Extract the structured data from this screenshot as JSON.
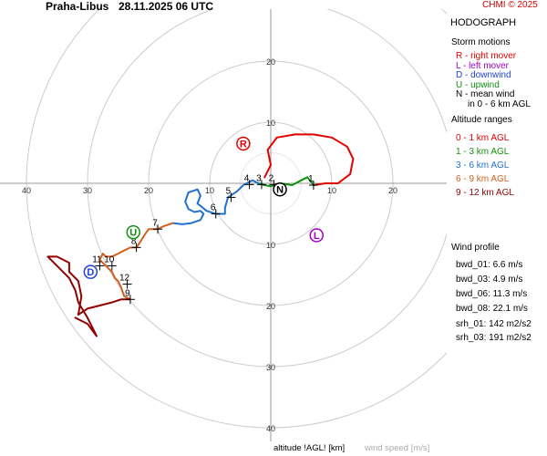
{
  "header": {
    "station": "Praha-Libus",
    "datetime": "28.11.2025 06 UTC",
    "copyright": "CHMI © 2025"
  },
  "footer": {
    "altitude_label": "altitude !AGL! [km]",
    "speed_label": "wind speed [m/s]"
  },
  "legend": {
    "title": "HODOGRAPH",
    "storm_title": "Storm motions",
    "storm_items": [
      {
        "text": "R - right mover",
        "color": "#e00000"
      },
      {
        "text": "L - left mover",
        "color": "#a000c0"
      },
      {
        "text": "D - downwind",
        "color": "#2040e0"
      },
      {
        "text": "U - upwind",
        "color": "#109010"
      },
      {
        "text": "N - mean wind",
        "color": "#000000"
      },
      {
        "text": "in 0 - 6 km AGL",
        "color": "#000000"
      }
    ],
    "alt_title": "Altitude ranges",
    "alt_items": [
      {
        "text": "0 - 1 km AGL",
        "color": "#e00000"
      },
      {
        "text": "1 - 3 km AGL",
        "color": "#109010"
      },
      {
        "text": "3 - 6 km AGL",
        "color": "#2070d0"
      },
      {
        "text": "6 - 9 km AGL",
        "color": "#d06020"
      },
      {
        "text": "9 - 12 km AGL",
        "color": "#900000"
      }
    ],
    "wind_title": "Wind profile",
    "wind_items": [
      "bwd_01: 6.6 m/s",
      "bwd_03: 4.9 m/s",
      "bwd_06: 11.3 m/s",
      "bwd_08: 22.1 m/s"
    ],
    "srh_items": [
      "srh_01: 142 m2/s2",
      "srh_03: 191 m2/s2"
    ]
  },
  "chart_data": {
    "type": "line",
    "title": "HODOGRAPH",
    "rings": [
      10,
      20,
      30,
      40
    ],
    "ring_labels_top": [
      "10",
      "20"
    ],
    "ring_labels_bottom": [
      "10",
      "20",
      "30",
      "40"
    ],
    "ring_labels_left": [
      "10",
      "20",
      "30",
      "40"
    ],
    "ring_labels_right": [
      "10",
      "20"
    ],
    "colors": {
      "0-1": "#e00000",
      "1-3": "#109010",
      "3-6": "#2070d0",
      "6-9": "#d06020",
      "9-12": "#900000"
    },
    "series": [
      {
        "range": "0-1",
        "points": [
          [
            -1,
            -1
          ],
          [
            0,
            -3
          ],
          [
            -0.5,
            -5.5
          ],
          [
            1,
            -7.5
          ],
          [
            4,
            -8
          ],
          [
            7,
            -8
          ],
          [
            10,
            -7.5
          ],
          [
            12.5,
            -6
          ],
          [
            13.5,
            -4
          ],
          [
            13,
            -1.5
          ],
          [
            11,
            0
          ],
          [
            9,
            0
          ],
          [
            7,
            0.3
          ]
        ]
      },
      {
        "range": "1-3",
        "points": [
          [
            7,
            0.3
          ],
          [
            6,
            -1
          ],
          [
            5,
            -0.5
          ],
          [
            3.5,
            0.3
          ],
          [
            1.5,
            0
          ],
          [
            0.5,
            0.3
          ],
          [
            0,
            0.5
          ],
          [
            -1,
            0.3
          ],
          [
            -2,
            0
          ]
        ]
      },
      {
        "range": "3-6",
        "points": [
          [
            -2,
            0
          ],
          [
            -3,
            -0.5
          ],
          [
            -4.5,
            0.3
          ],
          [
            -5.5,
            1.3
          ],
          [
            -7,
            2.3
          ],
          [
            -7.5,
            4
          ],
          [
            -7.5,
            5
          ],
          [
            -9,
            5
          ],
          [
            -10.5,
            4.5
          ],
          [
            -12,
            3.3
          ],
          [
            -11.5,
            2
          ],
          [
            -12,
            1
          ],
          [
            -13.5,
            1.5
          ],
          [
            -14,
            3
          ],
          [
            -13.5,
            4.2
          ],
          [
            -12.5,
            4.7
          ],
          [
            -11.5,
            4.5
          ],
          [
            -11,
            5
          ],
          [
            -11.5,
            6
          ],
          [
            -13,
            6.5
          ],
          [
            -14.5,
            6.7
          ],
          [
            -16,
            6.5
          ]
        ]
      },
      {
        "range": "6-9",
        "points": [
          [
            -16,
            6.5
          ],
          [
            -17.5,
            7
          ],
          [
            -18.5,
            7.5
          ],
          [
            -20,
            7.5
          ],
          [
            -20.5,
            8.2
          ],
          [
            -21,
            9
          ],
          [
            -21.5,
            9.8
          ],
          [
            -22,
            10.5
          ],
          [
            -23,
            10.5
          ],
          [
            -24,
            11
          ],
          [
            -25,
            11.5
          ],
          [
            -26,
            12
          ],
          [
            -27,
            12
          ],
          [
            -27.5,
            11.5
          ],
          [
            -28,
            12.5
          ],
          [
            -27,
            13.5
          ],
          [
            -26,
            14.5
          ],
          [
            -25.5,
            15.5
          ],
          [
            -25,
            16
          ],
          [
            -24.5,
            17
          ],
          [
            -24,
            18.5
          ],
          [
            -23,
            19
          ]
        ]
      },
      {
        "range": "9-12",
        "points": [
          [
            -23,
            19
          ],
          [
            -24.5,
            19
          ],
          [
            -26,
            19.5
          ],
          [
            -28,
            20
          ],
          [
            -30,
            20.5
          ],
          [
            -31.5,
            21.5
          ],
          [
            -31,
            18.5
          ],
          [
            -31.5,
            16
          ],
          [
            -33,
            14.5
          ],
          [
            -33,
            13
          ],
          [
            -35,
            12
          ],
          [
            -36.5,
            12
          ],
          [
            -35,
            13.5
          ],
          [
            -33,
            15.5
          ],
          [
            -32,
            17.5
          ],
          [
            -31.5,
            19.5
          ],
          [
            -30,
            22
          ],
          [
            -29,
            24
          ],
          [
            -28.5,
            25
          ],
          [
            -30,
            23
          ],
          [
            -32,
            22
          ]
        ]
      }
    ],
    "altitude_labels": [
      {
        "label": "1",
        "x": 7,
        "y": 0.3
      },
      {
        "label": "2",
        "x": 0.5,
        "y": 0.2
      },
      {
        "label": "3",
        "x": -1.5,
        "y": 0.2
      },
      {
        "label": "4",
        "x": -3.5,
        "y": 0.2
      },
      {
        "label": "5",
        "x": -6.5,
        "y": 2.3
      },
      {
        "label": "6",
        "x": -9,
        "y": 5
      },
      {
        "label": "7",
        "x": -18.5,
        "y": 7.5
      },
      {
        "label": "8",
        "x": -22,
        "y": 10.5
      },
      {
        "label": "9",
        "x": -23,
        "y": 19
      },
      {
        "label": "10",
        "x": -26,
        "y": 13.5
      },
      {
        "label": "11",
        "x": -28,
        "y": 13.5
      },
      {
        "label": "12",
        "x": -23.5,
        "y": 16.5
      }
    ],
    "altitude_marks": [
      [
        7,
        0.3
      ],
      [
        0.5,
        0.2
      ],
      [
        -1.5,
        0.2
      ],
      [
        -3.5,
        0.2
      ],
      [
        -6.5,
        2.3
      ],
      [
        -9,
        5
      ],
      [
        -18.5,
        7.5
      ],
      [
        -22,
        10.5
      ],
      [
        -23,
        19
      ],
      [
        -26,
        13.5
      ],
      [
        -28,
        13.5
      ],
      [
        -23.5,
        16.5
      ]
    ],
    "storm_motions": [
      {
        "label": "R",
        "x": -4.5,
        "y": -6.5,
        "color": "#e00000"
      },
      {
        "label": "L",
        "x": 7.5,
        "y": 8.5,
        "color": "#a000c0"
      },
      {
        "label": "D",
        "x": -29.5,
        "y": 14.5,
        "color": "#2040e0"
      },
      {
        "label": "U",
        "x": -22.5,
        "y": 8,
        "color": "#109010"
      },
      {
        "label": "N",
        "x": 1.5,
        "y": 1,
        "color": "#000000"
      }
    ]
  }
}
